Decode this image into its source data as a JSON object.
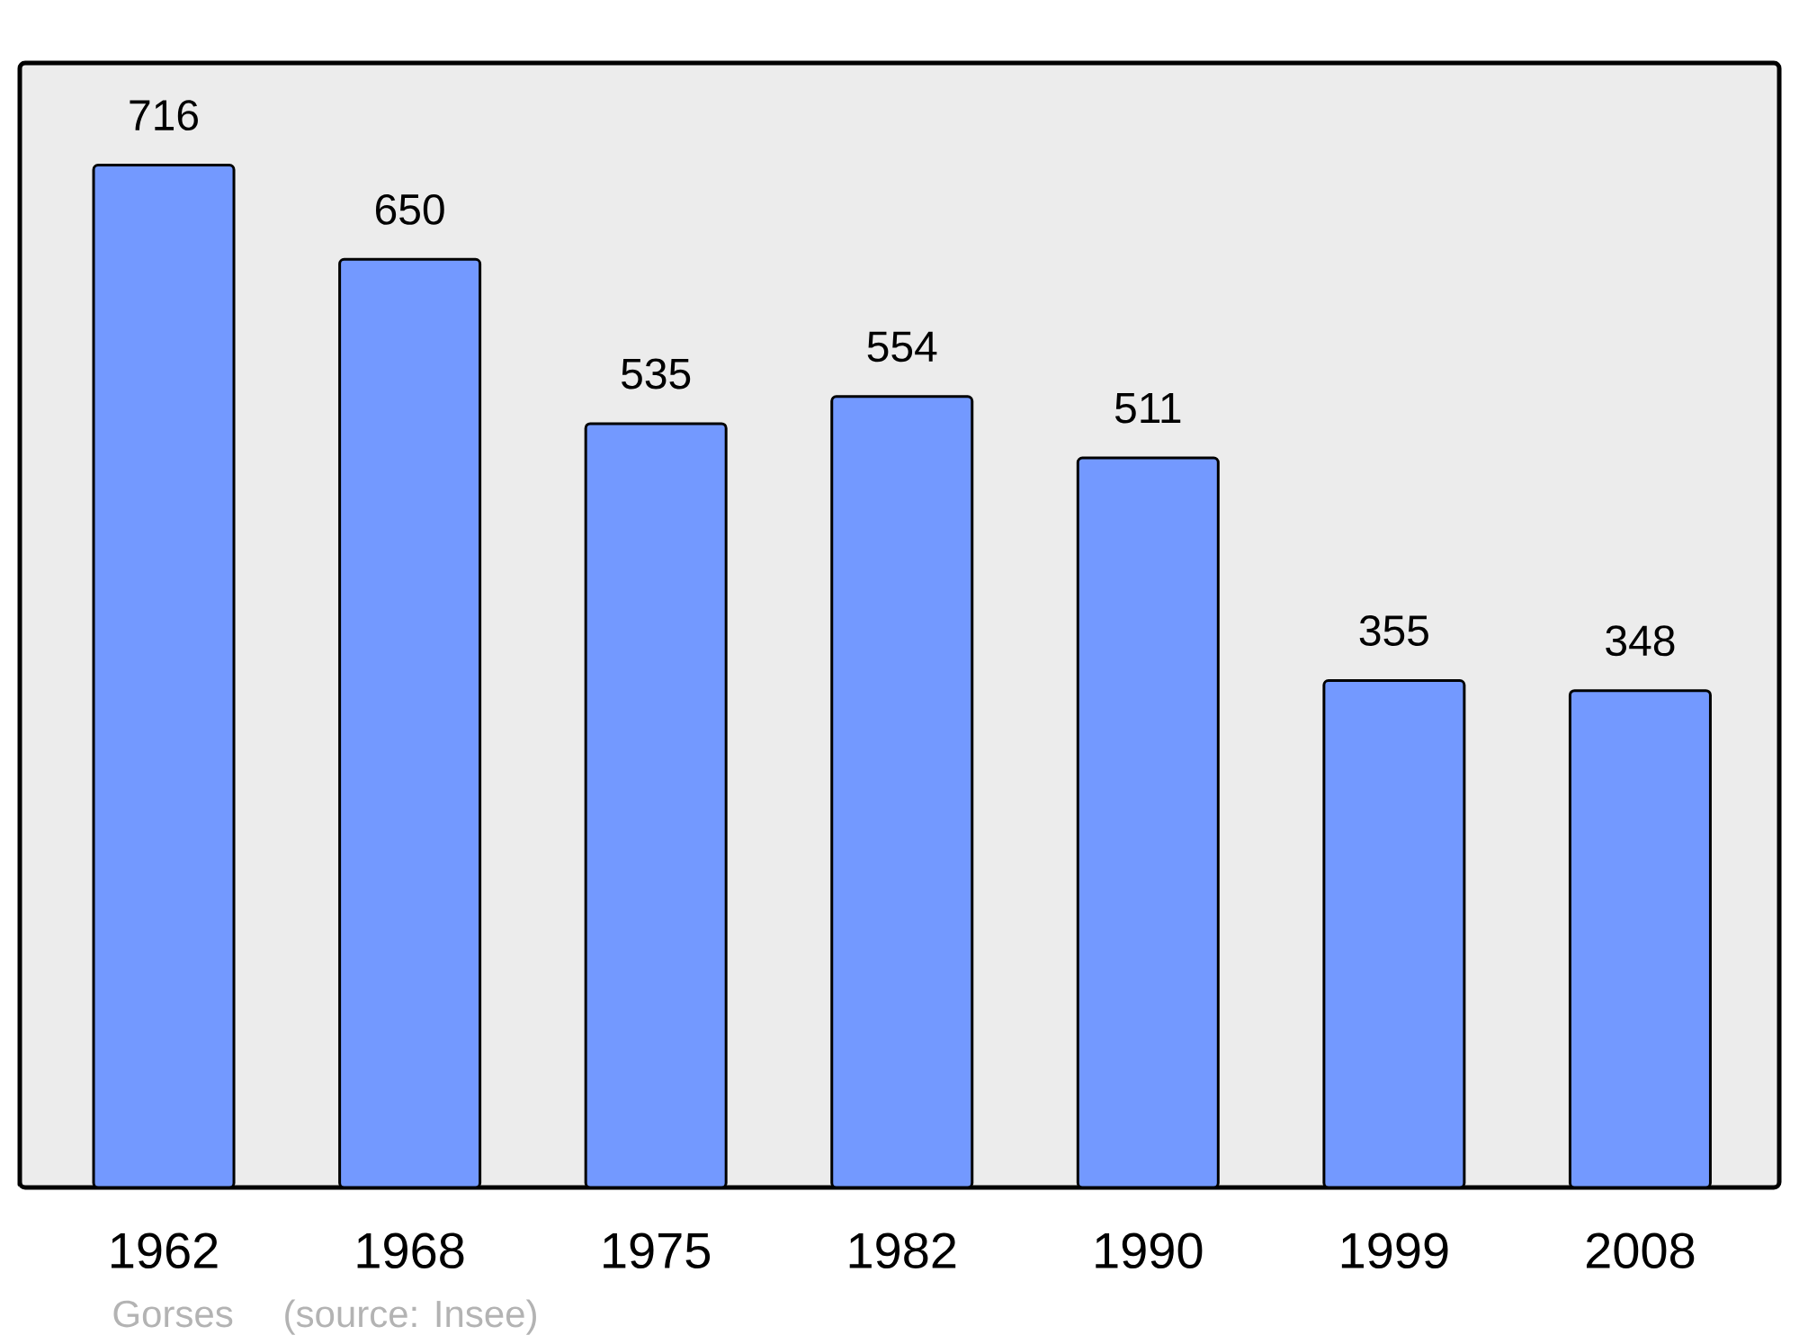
{
  "chart_data": {
    "type": "bar",
    "categories": [
      "1962",
      "1968",
      "1975",
      "1982",
      "1990",
      "1999",
      "2008"
    ],
    "values": [
      716,
      650,
      535,
      554,
      511,
      355,
      348
    ],
    "color": "#7399ff",
    "data_labels": true,
    "tick_labels": "x",
    "annotations": [
      "Gorses",
      "(source: Insee)"
    ]
  }
}
